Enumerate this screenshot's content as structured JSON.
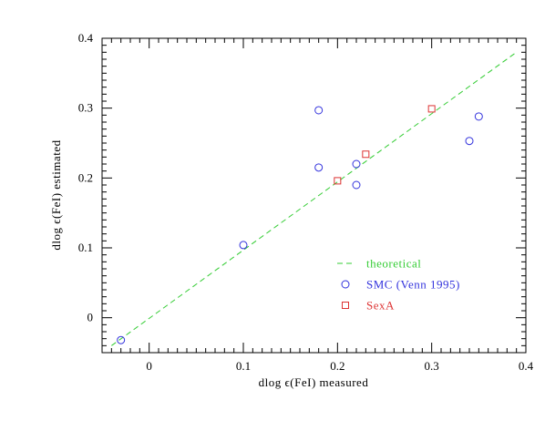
{
  "chart_data": {
    "type": "scatter",
    "xlabel": "dlog ϵ(FeI) measured",
    "ylabel": "dlog ϵ(FeI) estimated",
    "xlim": [
      -0.05,
      0.4
    ],
    "ylim": [
      -0.05,
      0.4
    ],
    "x_ticks": [
      "0",
      "0.1",
      "0.2",
      "0.3",
      "0.4"
    ],
    "y_ticks": [
      "0",
      "0.1",
      "0.2",
      "0.3",
      "0.4"
    ],
    "grid": false,
    "legend_position": "bottom-right",
    "series": [
      {
        "name": "theoretical",
        "kind": "line",
        "style": "dashed",
        "color": "#33cc33",
        "x": [
          -0.04,
          0.39
        ],
        "y": [
          -0.04,
          0.38
        ]
      },
      {
        "name": "SMC (Venn 1995)",
        "kind": "marker",
        "marker": "circle",
        "color": "#3333dd",
        "x": [
          -0.03,
          0.1,
          0.18,
          0.18,
          0.22,
          0.22,
          0.34,
          0.35
        ],
        "y": [
          -0.032,
          0.104,
          0.297,
          0.215,
          0.22,
          0.19,
          0.253,
          0.288
        ]
      },
      {
        "name": "SexA",
        "kind": "marker",
        "marker": "square",
        "color": "#dd3333",
        "x": [
          0.2,
          0.23,
          0.3
        ],
        "y": [
          0.196,
          0.234,
          0.299
        ]
      }
    ]
  }
}
